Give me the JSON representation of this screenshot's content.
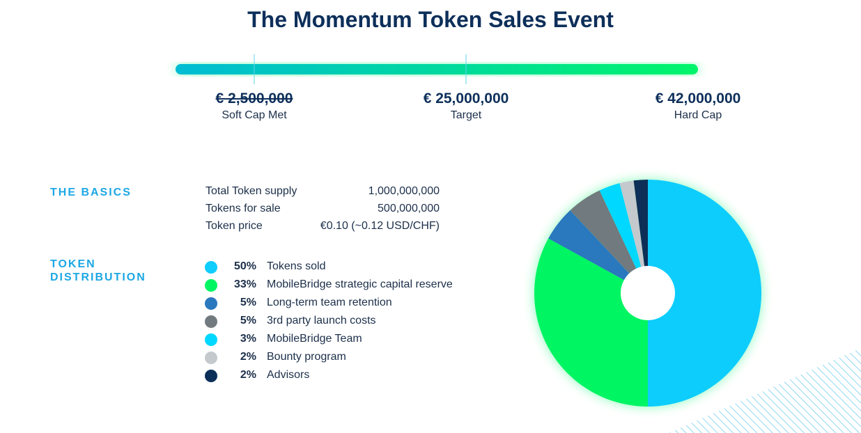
{
  "header": {
    "title": "The Momentum Token Sales Event"
  },
  "milestones": [
    {
      "amount": "€ 2,500,000",
      "label": "Soft Cap Met",
      "struck": true
    },
    {
      "amount": "€ 25,000,000",
      "label": "Target"
    },
    {
      "amount": "€ 42,000,000",
      "label": "Hard Cap"
    }
  ],
  "basics": {
    "heading": "THE BASICS",
    "rows": [
      [
        "Total Token supply",
        "1,000,000,000"
      ],
      [
        "Tokens for sale",
        "500,000,000"
      ],
      [
        "Token price",
        "€0.10 (~0.12 USD/CHF)"
      ]
    ]
  },
  "chart_data": {
    "type": "pie",
    "title": "TOKEN DISTRIBUTION",
    "categories": [
      "Tokens sold",
      "MobileBridge strategic capital reserve",
      "Long-term team retention",
      "3rd party launch costs",
      "MobileBridge Team",
      "Bounty program",
      "Advisors"
    ],
    "values": [
      50,
      33,
      5,
      5,
      3,
      2,
      2
    ],
    "value_labels": [
      "50%",
      "33%",
      "5%",
      "5%",
      "3%",
      "2%",
      "2%"
    ],
    "colors": [
      "#0fcdfd",
      "#00f563",
      "#2a78bd",
      "#717a7e",
      "#00d8ff",
      "#c3c9cd",
      "#0b2f57"
    ]
  }
}
